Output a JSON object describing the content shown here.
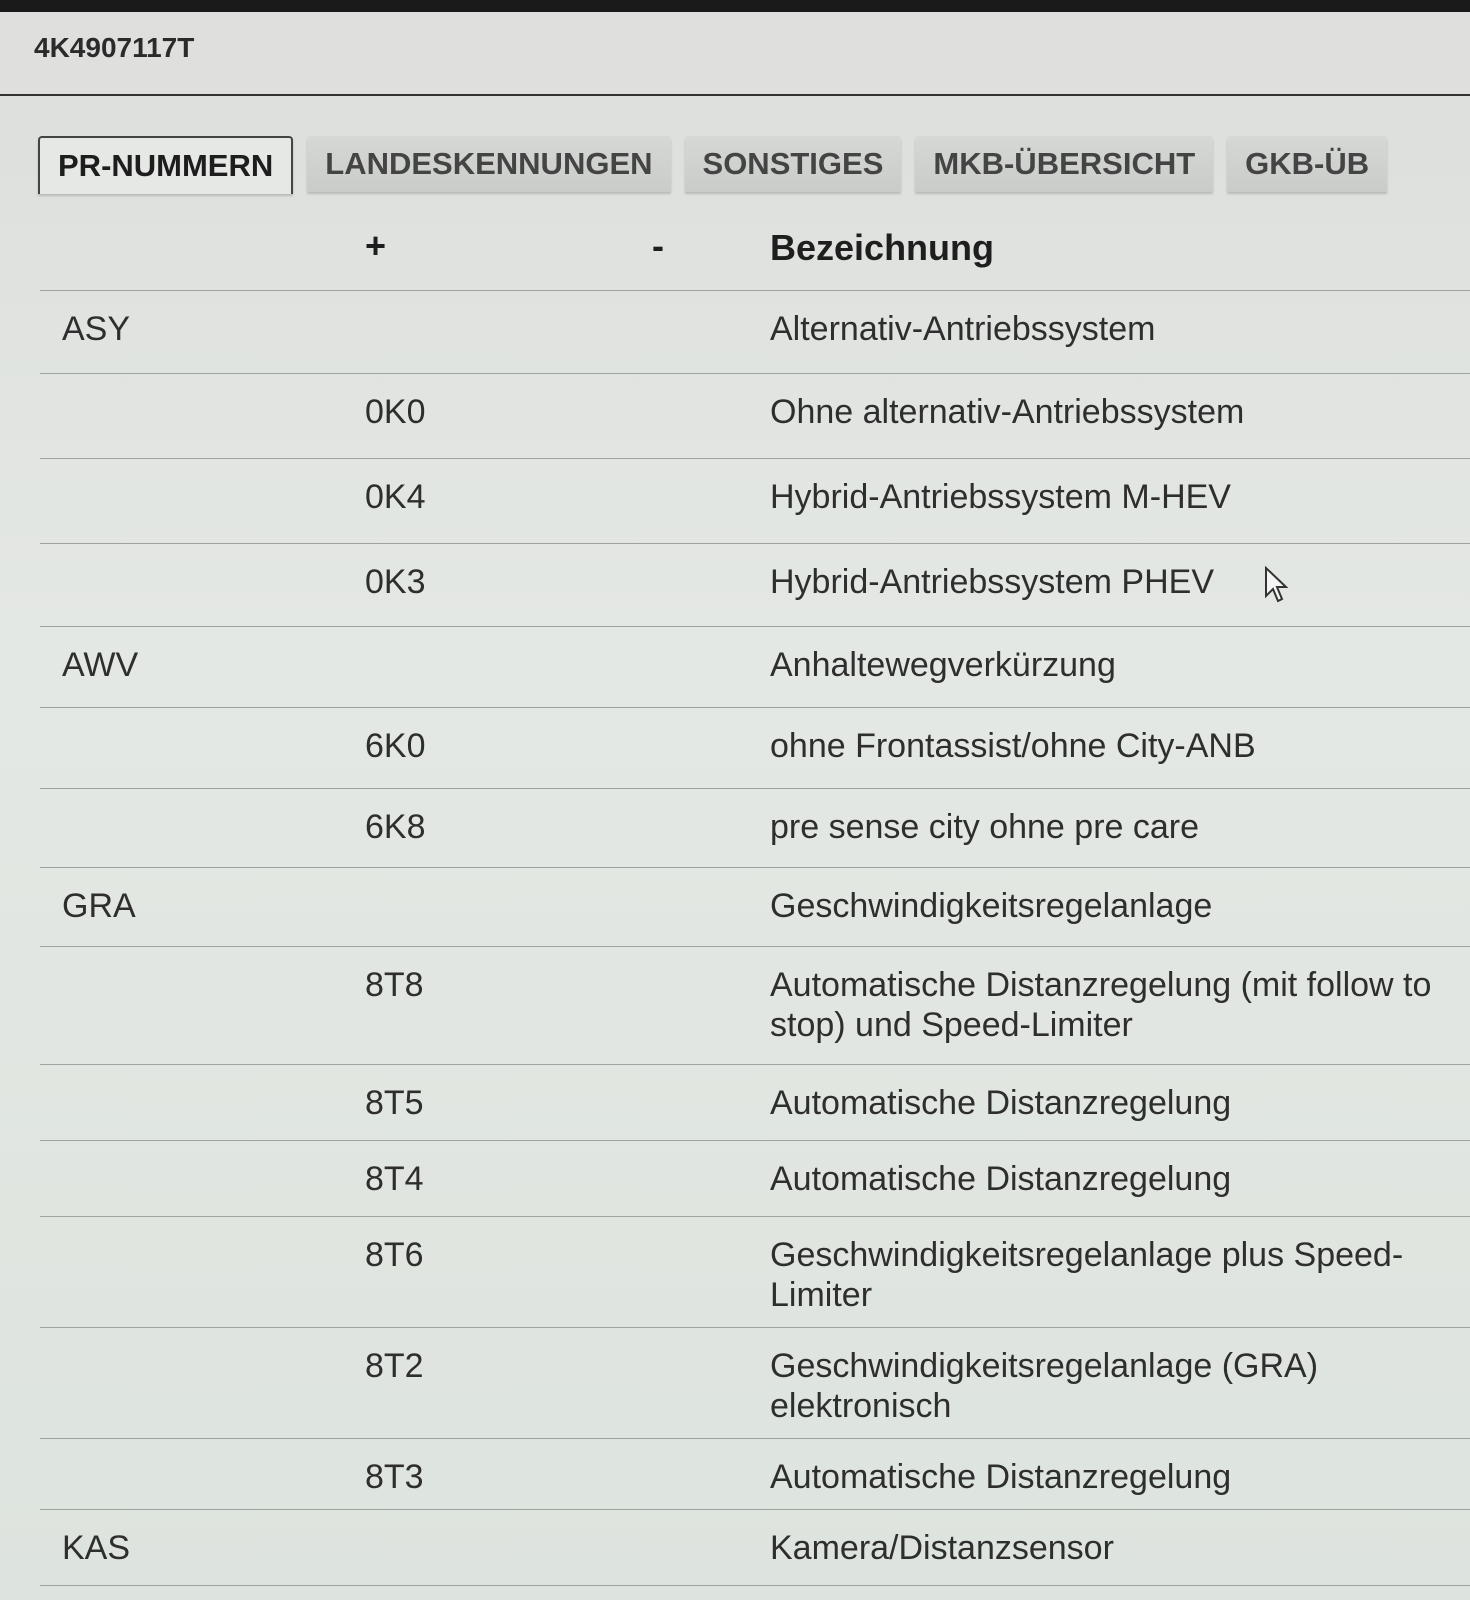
{
  "header": {
    "part_number": "4K4907117T"
  },
  "tabs": [
    {
      "label": "PR-NUMMERN",
      "active": true
    },
    {
      "label": "LANDESKENNUNGEN",
      "active": false
    },
    {
      "label": "SONSTIGES",
      "active": false
    },
    {
      "label": "MKB-ÜBERSICHT",
      "active": false
    },
    {
      "label": "GKB-ÜB",
      "active": false
    }
  ],
  "table": {
    "columns": {
      "group": "",
      "plus": "+",
      "minus": "-",
      "description": "Bezeichnung"
    },
    "rows": [
      {
        "group": "ASY",
        "plus": "",
        "minus": "",
        "description": "Alternativ-Antriebssystem"
      },
      {
        "group": "",
        "plus": "0K0",
        "minus": "",
        "description": "Ohne alternativ-Antriebssystem"
      },
      {
        "group": "",
        "plus": "0K4",
        "minus": "",
        "description": "Hybrid-Antriebssystem M-HEV"
      },
      {
        "group": "",
        "plus": "0K3",
        "minus": "",
        "description": "Hybrid-Antriebssystem PHEV"
      },
      {
        "group": "AWV",
        "plus": "",
        "minus": "",
        "description": "Anhaltewegverkürzung"
      },
      {
        "group": "",
        "plus": "6K0",
        "minus": "",
        "description": "ohne Frontassist/ohne City-ANB"
      },
      {
        "group": "",
        "plus": "6K8",
        "minus": "",
        "description": "pre sense city ohne pre care"
      },
      {
        "group": "GRA",
        "plus": "",
        "minus": "",
        "description": "Geschwindigkeitsregelanlage"
      },
      {
        "group": "",
        "plus": "8T8",
        "minus": "",
        "description": "Automatische Distanzregelung (mit follow to stop) und Speed-Limiter"
      },
      {
        "group": "",
        "plus": "8T5",
        "minus": "",
        "description": "Automatische Distanzregelung"
      },
      {
        "group": "",
        "plus": "8T4",
        "minus": "",
        "description": "Automatische Distanzregelung"
      },
      {
        "group": "",
        "plus": "8T6",
        "minus": "",
        "description": "Geschwindigkeitsregelanlage plus Speed-Limiter"
      },
      {
        "group": "",
        "plus": "8T2",
        "minus": "",
        "description": "Geschwindigkeitsregelanlage (GRA) elektronisch"
      },
      {
        "group": "",
        "plus": "8T3",
        "minus": "",
        "description": "Automatische Distanzregelung"
      },
      {
        "group": "KAS",
        "plus": "",
        "minus": "",
        "description": "Kamera/Distanzsensor"
      }
    ]
  }
}
